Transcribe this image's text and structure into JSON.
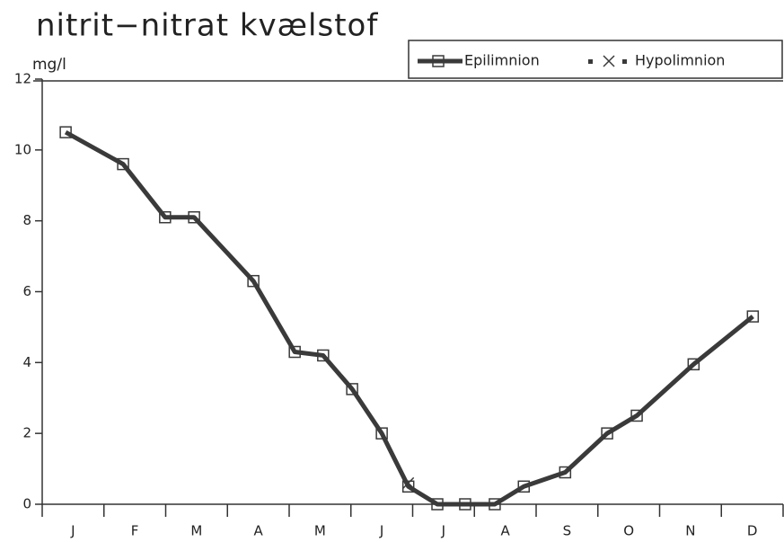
{
  "chart_data": {
    "type": "line",
    "title": "nitrit−nitrat kvælstof",
    "y_label": "mg/l",
    "categories": [
      "J",
      "F",
      "M",
      "A",
      "M",
      "J",
      "J",
      "A",
      "S",
      "O",
      "N",
      "D"
    ],
    "x": [
      0.38,
      1.31,
      1.99,
      2.46,
      3.42,
      4.09,
      4.55,
      5.02,
      5.5,
      5.93,
      6.4,
      6.85,
      7.33,
      7.8,
      8.47,
      9.15,
      9.63,
      10.55,
      11.51
    ],
    "xlim": [
      0,
      12
    ],
    "series": [
      {
        "name": "Epilimnion",
        "color": "#3a3a3a",
        "marker": "square",
        "values": [
          10.5,
          9.6,
          8.1,
          8.1,
          6.3,
          4.3,
          4.2,
          3.25,
          2.0,
          0.5,
          0,
          0,
          0,
          0.5,
          0.9,
          2.0,
          2.5,
          3.95,
          5.3
        ]
      },
      {
        "name": "Hypolimnion",
        "color": "#3a3a3a",
        "marker": "x",
        "values": [
          null,
          null,
          null,
          null,
          null,
          null,
          null,
          null,
          null,
          0.6,
          null,
          null,
          null,
          null,
          null,
          null,
          null,
          null,
          null
        ]
      }
    ],
    "ylim": [
      0,
      12
    ],
    "yticks": [
      0,
      2,
      4,
      6,
      8,
      10,
      12
    ]
  }
}
